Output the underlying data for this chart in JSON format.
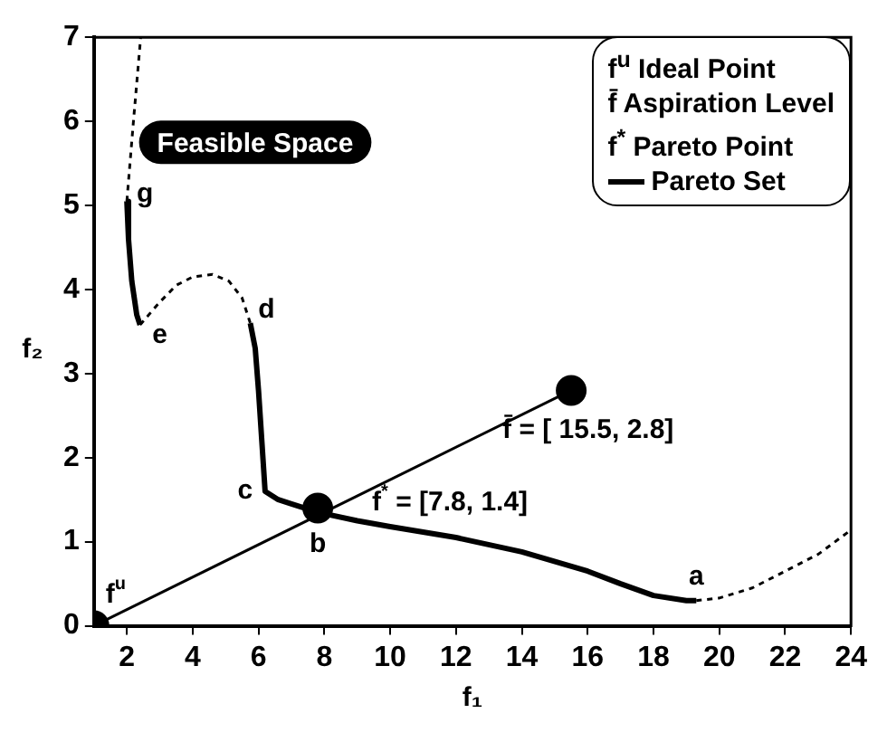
{
  "chart_data": {
    "type": "line",
    "xlabel": "f₁",
    "ylabel": "f₂",
    "xlim": [
      1,
      24
    ],
    "ylim": [
      0,
      7
    ],
    "xticks": [
      2,
      4,
      6,
      8,
      10,
      12,
      14,
      16,
      18,
      20,
      22,
      24
    ],
    "yticks": [
      0,
      1,
      2,
      3,
      4,
      5,
      6,
      7
    ],
    "grid": false,
    "legend": "top right",
    "series": [
      {
        "name": "Pareto Set",
        "color": "#000000",
        "line_style": "solid",
        "marker": "none",
        "x": [
          2.0,
          2.05,
          2.15,
          2.3,
          2.4,
          null,
          5.75,
          5.9,
          6.0,
          6.1,
          6.2,
          6.6,
          7.0,
          7.8,
          9,
          10,
          12,
          14,
          16,
          17,
          18,
          19,
          19.3
        ],
        "values": [
          5.05,
          4.6,
          4.1,
          3.7,
          3.58,
          null,
          3.6,
          3.3,
          2.8,
          2.2,
          1.6,
          1.5,
          1.45,
          1.35,
          1.25,
          1.18,
          1.05,
          0.88,
          0.65,
          0.5,
          0.36,
          0.3,
          0.3
        ]
      },
      {
        "color": "#000000",
        "line_style": "dashed",
        "marker": "none",
        "x": [
          2.0,
          2.2,
          2.42,
          null,
          2.4,
          3.0,
          3.5,
          4.0,
          4.6,
          5.1,
          5.5,
          5.75,
          null,
          19.3,
          20,
          21,
          22,
          23,
          24
        ],
        "values": [
          5.05,
          6.0,
          7.0,
          null,
          3.58,
          3.85,
          4.05,
          4.15,
          4.18,
          4.1,
          3.9,
          3.6,
          null,
          0.3,
          0.33,
          0.45,
          0.65,
          0.85,
          1.14
        ]
      },
      {
        "color": "#000000",
        "line_style": "solid",
        "marker": "none",
        "x": [
          1,
          15.5
        ],
        "values": [
          0,
          2.8
        ]
      },
      {
        "type": "scatter",
        "color": "#000000",
        "marker": "circle",
        "x": [
          1,
          15.5,
          7.8
        ],
        "values": [
          0,
          2.8,
          1.4
        ]
      }
    ],
    "annotations": [
      "Feasible Space",
      "f$^{u}$ Ideal Point",
      "f̄ Aspiration Level",
      "f$^{*}$ Pareto Point",
      {
        "text": "g",
        "x": 2.0,
        "y": 5.05
      },
      {
        "text": "e",
        "x": 2.4,
        "y": 3.58
      },
      {
        "text": "d",
        "x": 5.75,
        "y": 3.6
      },
      {
        "text": "c",
        "x": 6.2,
        "y": 1.6
      },
      {
        "text": "b",
        "x": 7.8,
        "y": 1.4
      },
      {
        "text": "a",
        "x": 19.3,
        "y": 0.3
      },
      {
        "text": "f$^{u}$",
        "x": 1,
        "y": 0
      },
      {
        "text": "f$^{*}$ = [7.8, 1.4]",
        "x": 7.8,
        "y": 1.4
      },
      {
        "text": "f̄ = [ 15.5, 2.8]",
        "x": 15.5,
        "y": 2.8
      }
    ]
  }
}
